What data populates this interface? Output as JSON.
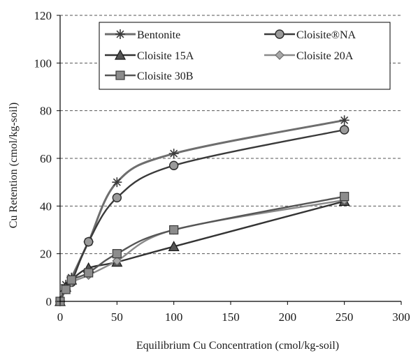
{
  "chart_data": {
    "type": "line",
    "xlabel": "Equilibrium Cu Concentration (cmol/kg-soil)",
    "ylabel": "Cu Retention (cmol/kg-soil)",
    "xlim": [
      0,
      300
    ],
    "ylim": [
      0,
      120
    ],
    "xticks": [
      "0",
      "50",
      "100",
      "150",
      "200",
      "250",
      "300"
    ],
    "yticks": [
      "0",
      "20",
      "40",
      "60",
      "80",
      "100",
      "120"
    ],
    "grid": "horizontal dashed",
    "legend_position": "top-right",
    "series": [
      {
        "name": "Bentonite",
        "marker": "star",
        "color": "#6e6e6e",
        "x": [
          0,
          5,
          10,
          25,
          50,
          100,
          250
        ],
        "y": [
          0,
          7,
          10,
          25,
          50,
          62,
          76
        ]
      },
      {
        "name": "Cloisite®NA",
        "marker": "circle",
        "color": "#3a3a3a",
        "x": [
          0,
          5,
          10,
          25,
          50,
          100,
          250
        ],
        "y": [
          0,
          5,
          8,
          25,
          43.5,
          57,
          72
        ]
      },
      {
        "name": "Cloisite 15A",
        "marker": "triangle",
        "color": "#333333",
        "x": [
          0,
          5,
          10,
          25,
          50,
          100,
          250
        ],
        "y": [
          0,
          6,
          9,
          14,
          16.5,
          23,
          42
        ]
      },
      {
        "name": "Cloisite 20A",
        "marker": "diamond",
        "color": "#8a8a8a",
        "x": [
          0,
          5,
          10,
          25,
          50,
          100,
          250
        ],
        "y": [
          0,
          5,
          8,
          11,
          17,
          30,
          42.5
        ]
      },
      {
        "name": "Cloisite 30B",
        "marker": "square",
        "color": "#555555",
        "x": [
          0,
          5,
          10,
          25,
          50,
          100,
          250
        ],
        "y": [
          0,
          5,
          9,
          12,
          20,
          30,
          44
        ]
      }
    ]
  }
}
